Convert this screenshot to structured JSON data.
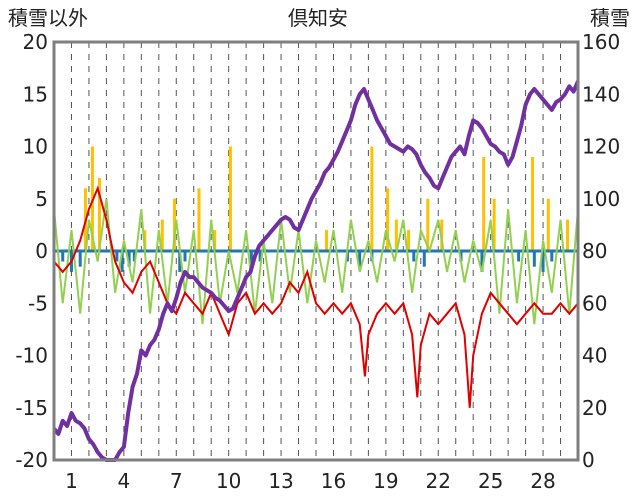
{
  "chart_data": {
    "type": "line",
    "title": "倶知安",
    "left_axis_label": "積雪以外",
    "right_axis_label": "積雪",
    "ylim": [
      -20,
      20
    ],
    "y2lim": [
      0,
      160
    ],
    "xlim": [
      0,
      30
    ],
    "yticks": [
      20,
      15,
      10,
      5,
      0,
      -5,
      -10,
      -15,
      -20
    ],
    "y2ticks": [
      160,
      140,
      120,
      100,
      80,
      60,
      40,
      20,
      0
    ],
    "xtick_labels": [
      "1",
      "4",
      "7",
      "10",
      "13",
      "16",
      "19",
      "22",
      "25",
      "28"
    ],
    "xtick_positions": [
      1,
      4,
      7,
      10,
      13,
      16,
      19,
      22,
      25,
      28
    ],
    "grid": "vertical-dashed-daily",
    "colors": {
      "snow_depth": "#7030a0",
      "temperature": "#e00000",
      "wind": "#92d050",
      "precip": "#ffc000",
      "sunshine": "#1f77b4",
      "frame": "#7f7f7f"
    },
    "snow_depth": [
      [
        0,
        12
      ],
      [
        0.25,
        10
      ],
      [
        0.5,
        15
      ],
      [
        0.75,
        13
      ],
      [
        1,
        18
      ],
      [
        1.25,
        15
      ],
      [
        1.5,
        14
      ],
      [
        1.75,
        12
      ],
      [
        2,
        8
      ],
      [
        2.25,
        6
      ],
      [
        2.5,
        3
      ],
      [
        2.75,
        1
      ],
      [
        3,
        0
      ],
      [
        3.25,
        0
      ],
      [
        3.5,
        0
      ],
      [
        3.75,
        3
      ],
      [
        4,
        5
      ],
      [
        4.25,
        18
      ],
      [
        4.5,
        28
      ],
      [
        4.75,
        33
      ],
      [
        5,
        42
      ],
      [
        5.25,
        40
      ],
      [
        5.5,
        44
      ],
      [
        5.75,
        46
      ],
      [
        6,
        50
      ],
      [
        6.25,
        56
      ],
      [
        6.5,
        60
      ],
      [
        6.75,
        57
      ],
      [
        7,
        62
      ],
      [
        7.25,
        68
      ],
      [
        7.5,
        72
      ],
      [
        7.75,
        70
      ],
      [
        8,
        70
      ],
      [
        8.25,
        68
      ],
      [
        8.5,
        66
      ],
      [
        8.75,
        65
      ],
      [
        9,
        64
      ],
      [
        9.25,
        62
      ],
      [
        9.5,
        61
      ],
      [
        9.75,
        59
      ],
      [
        10,
        57
      ],
      [
        10.25,
        58
      ],
      [
        10.5,
        62
      ],
      [
        10.75,
        66
      ],
      [
        11,
        70
      ],
      [
        11.25,
        72
      ],
      [
        11.5,
        78
      ],
      [
        11.75,
        82
      ],
      [
        12,
        84
      ],
      [
        12.25,
        86
      ],
      [
        12.5,
        88
      ],
      [
        12.75,
        90
      ],
      [
        13,
        92
      ],
      [
        13.25,
        93
      ],
      [
        13.5,
        92
      ],
      [
        13.75,
        89
      ],
      [
        14,
        88
      ],
      [
        14.25,
        92
      ],
      [
        14.5,
        96
      ],
      [
        14.75,
        100
      ],
      [
        15,
        103
      ],
      [
        15.25,
        106
      ],
      [
        15.5,
        110
      ],
      [
        15.75,
        112
      ],
      [
        16,
        115
      ],
      [
        16.25,
        118
      ],
      [
        16.5,
        122
      ],
      [
        16.75,
        126
      ],
      [
        17,
        130
      ],
      [
        17.25,
        136
      ],
      [
        17.5,
        140
      ],
      [
        17.75,
        142
      ],
      [
        18,
        138
      ],
      [
        18.25,
        134
      ],
      [
        18.5,
        130
      ],
      [
        18.75,
        127
      ],
      [
        19,
        124
      ],
      [
        19.25,
        121
      ],
      [
        19.5,
        120
      ],
      [
        19.75,
        119
      ],
      [
        20,
        118
      ],
      [
        20.25,
        120
      ],
      [
        20.5,
        119
      ],
      [
        20.75,
        117
      ],
      [
        21,
        113
      ],
      [
        21.25,
        110
      ],
      [
        21.5,
        108
      ],
      [
        21.75,
        105
      ],
      [
        22,
        104
      ],
      [
        22.25,
        108
      ],
      [
        22.5,
        112
      ],
      [
        22.75,
        116
      ],
      [
        23,
        118
      ],
      [
        23.25,
        120
      ],
      [
        23.5,
        117
      ],
      [
        23.75,
        124
      ],
      [
        24,
        130
      ],
      [
        24.25,
        129
      ],
      [
        24.5,
        127
      ],
      [
        24.75,
        124
      ],
      [
        25,
        121
      ],
      [
        25.25,
        120
      ],
      [
        25.5,
        118
      ],
      [
        25.75,
        117
      ],
      [
        26,
        113
      ],
      [
        26.25,
        116
      ],
      [
        26.5,
        122
      ],
      [
        26.75,
        128
      ],
      [
        27,
        136
      ],
      [
        27.25,
        140
      ],
      [
        27.5,
        142
      ],
      [
        27.75,
        140
      ],
      [
        28,
        138
      ],
      [
        28.25,
        136
      ],
      [
        28.5,
        134
      ],
      [
        28.75,
        137
      ],
      [
        29,
        138
      ],
      [
        29.25,
        140
      ],
      [
        29.5,
        143
      ],
      [
        29.75,
        141
      ],
      [
        30,
        145
      ]
    ],
    "temperature": [
      [
        0,
        -1
      ],
      [
        0.5,
        -2
      ],
      [
        1,
        -1
      ],
      [
        1.5,
        1
      ],
      [
        2,
        4
      ],
      [
        2.5,
        6
      ],
      [
        3,
        3
      ],
      [
        3.5,
        -1
      ],
      [
        4,
        -3
      ],
      [
        4.5,
        -4
      ],
      [
        5,
        -2
      ],
      [
        5.5,
        -1
      ],
      [
        6,
        -3
      ],
      [
        6.5,
        -5
      ],
      [
        7,
        -6
      ],
      [
        7.5,
        -4
      ],
      [
        8,
        -5
      ],
      [
        8.5,
        -6
      ],
      [
        9,
        -4
      ],
      [
        9.5,
        -6
      ],
      [
        10,
        -8
      ],
      [
        10.5,
        -5
      ],
      [
        11,
        -4
      ],
      [
        11.5,
        -6
      ],
      [
        12,
        -5
      ],
      [
        12.5,
        -6
      ],
      [
        13,
        -5
      ],
      [
        13.5,
        -3
      ],
      [
        14,
        -4
      ],
      [
        14.5,
        -2
      ],
      [
        15,
        -5
      ],
      [
        15.5,
        -6
      ],
      [
        16,
        -5
      ],
      [
        16.5,
        -6
      ],
      [
        17,
        -5
      ],
      [
        17.5,
        -7
      ],
      [
        17.8,
        -12
      ],
      [
        18,
        -8
      ],
      [
        18.5,
        -6
      ],
      [
        19,
        -5
      ],
      [
        19.5,
        -6
      ],
      [
        20,
        -5
      ],
      [
        20.5,
        -8
      ],
      [
        20.8,
        -14
      ],
      [
        21,
        -9
      ],
      [
        21.5,
        -6
      ],
      [
        22,
        -7
      ],
      [
        22.5,
        -6
      ],
      [
        23,
        -5
      ],
      [
        23.5,
        -8
      ],
      [
        23.8,
        -15
      ],
      [
        24,
        -10
      ],
      [
        24.5,
        -6
      ],
      [
        25,
        -4
      ],
      [
        25.5,
        -5
      ],
      [
        26,
        -6
      ],
      [
        26.5,
        -7
      ],
      [
        27,
        -6
      ],
      [
        27.5,
        -5
      ],
      [
        28,
        -6
      ],
      [
        28.5,
        -6
      ],
      [
        29,
        -5
      ],
      [
        29.5,
        -6
      ],
      [
        30,
        -5
      ]
    ],
    "wind": [
      [
        0,
        4
      ],
      [
        0.5,
        -5
      ],
      [
        1,
        2
      ],
      [
        1.5,
        -6
      ],
      [
        2,
        3
      ],
      [
        2.5,
        -1
      ],
      [
        3,
        5
      ],
      [
        3.5,
        -4
      ],
      [
        4,
        1
      ],
      [
        4.5,
        -3
      ],
      [
        5,
        4
      ],
      [
        5.5,
        -6
      ],
      [
        6,
        2
      ],
      [
        6.5,
        -5
      ],
      [
        7,
        3
      ],
      [
        7.5,
        -4
      ],
      [
        8,
        2
      ],
      [
        8.5,
        -7
      ],
      [
        9,
        3
      ],
      [
        9.5,
        -5
      ],
      [
        10,
        0
      ],
      [
        10.5,
        -4
      ],
      [
        11,
        2
      ],
      [
        11.5,
        -6
      ],
      [
        12,
        1
      ],
      [
        12.5,
        -5
      ],
      [
        13,
        3
      ],
      [
        13.5,
        -4
      ],
      [
        14,
        2
      ],
      [
        14.5,
        -5
      ],
      [
        15,
        1
      ],
      [
        15.5,
        -3
      ],
      [
        16,
        2
      ],
      [
        16.5,
        -4
      ],
      [
        17,
        3
      ],
      [
        17.5,
        -2
      ],
      [
        18,
        1
      ],
      [
        18.5,
        -3
      ],
      [
        19,
        2
      ],
      [
        19.5,
        -1
      ],
      [
        20,
        3
      ],
      [
        20.5,
        -4
      ],
      [
        21,
        2
      ],
      [
        21.5,
        0
      ],
      [
        22,
        3
      ],
      [
        22.5,
        -2
      ],
      [
        23,
        2
      ],
      [
        23.5,
        -3
      ],
      [
        24,
        1
      ],
      [
        24.5,
        -2
      ],
      [
        25,
        3
      ],
      [
        25.5,
        -6
      ],
      [
        26,
        4
      ],
      [
        26.5,
        -5
      ],
      [
        27,
        2
      ],
      [
        27.5,
        -7
      ],
      [
        28,
        1
      ],
      [
        28.5,
        -4
      ],
      [
        29,
        3
      ],
      [
        29.5,
        -6
      ],
      [
        30,
        4
      ]
    ],
    "precip_bars": [
      [
        1.8,
        6
      ],
      [
        2.2,
        10
      ],
      [
        2.6,
        7
      ],
      [
        5.2,
        2
      ],
      [
        6.2,
        3
      ],
      [
        6.9,
        5
      ],
      [
        8.3,
        6
      ],
      [
        9.2,
        2
      ],
      [
        10.1,
        10
      ],
      [
        15.6,
        2
      ],
      [
        18.2,
        10
      ],
      [
        19.1,
        6
      ],
      [
        19.6,
        3
      ],
      [
        20.3,
        2
      ],
      [
        21.4,
        5
      ],
      [
        22.2,
        3
      ],
      [
        24.6,
        9
      ],
      [
        25.2,
        5
      ],
      [
        27.4,
        9
      ],
      [
        28.3,
        5
      ],
      [
        29.4,
        3
      ]
    ],
    "sunshine_bars": [
      [
        0.5,
        -1
      ],
      [
        1.0,
        -2
      ],
      [
        1.5,
        -1.5
      ],
      [
        3.6,
        -1
      ],
      [
        3.9,
        -2
      ],
      [
        4.3,
        -1.5
      ],
      [
        4.6,
        -1
      ],
      [
        7.2,
        -2
      ],
      [
        7.5,
        -1
      ],
      [
        11.3,
        -1.5
      ],
      [
        11.8,
        -1
      ],
      [
        16.8,
        -1
      ],
      [
        17.5,
        -1.5
      ],
      [
        18.2,
        -1
      ],
      [
        20.6,
        -1
      ],
      [
        21.2,
        -1.5
      ],
      [
        23.3,
        -1
      ],
      [
        24.5,
        -2
      ],
      [
        26.6,
        -1
      ],
      [
        27.5,
        -1.5
      ],
      [
        28.0,
        -2
      ],
      [
        28.5,
        -1
      ]
    ]
  }
}
